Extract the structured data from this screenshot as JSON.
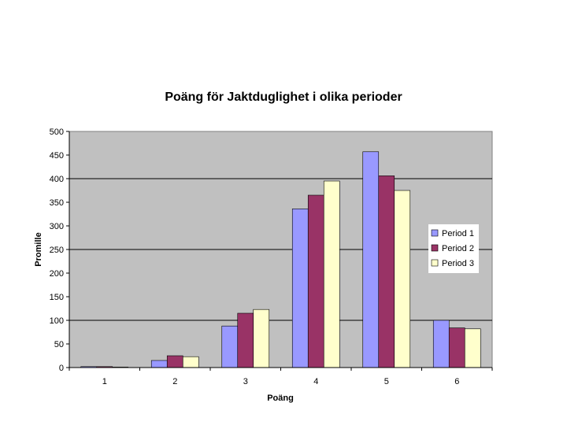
{
  "chart_data": {
    "type": "bar",
    "title": "Poäng för Jaktduglighet i olika perioder",
    "xlabel": "Poäng",
    "ylabel": "Promille",
    "categories": [
      "1",
      "2",
      "3",
      "4",
      "5",
      "6"
    ],
    "ylim": [
      0,
      500
    ],
    "yticks": [
      "0",
      "50",
      "100",
      "150",
      "200",
      "250",
      "300",
      "350",
      "400",
      "450",
      "500"
    ],
    "grid": "major horizontal lines at 100, 250, 400",
    "plot_background": "#c0c0c0",
    "legend_position": "right",
    "series": [
      {
        "name": "Period 1",
        "color": "#9999ff",
        "values": [
          2,
          15,
          88,
          336,
          457,
          100
        ]
      },
      {
        "name": "Period 2",
        "color": "#993366",
        "values": [
          2,
          25,
          115,
          365,
          406,
          84
        ]
      },
      {
        "name": "Period 3",
        "color": "#ffffcc",
        "values": [
          1,
          23,
          123,
          395,
          375,
          82
        ]
      }
    ]
  }
}
